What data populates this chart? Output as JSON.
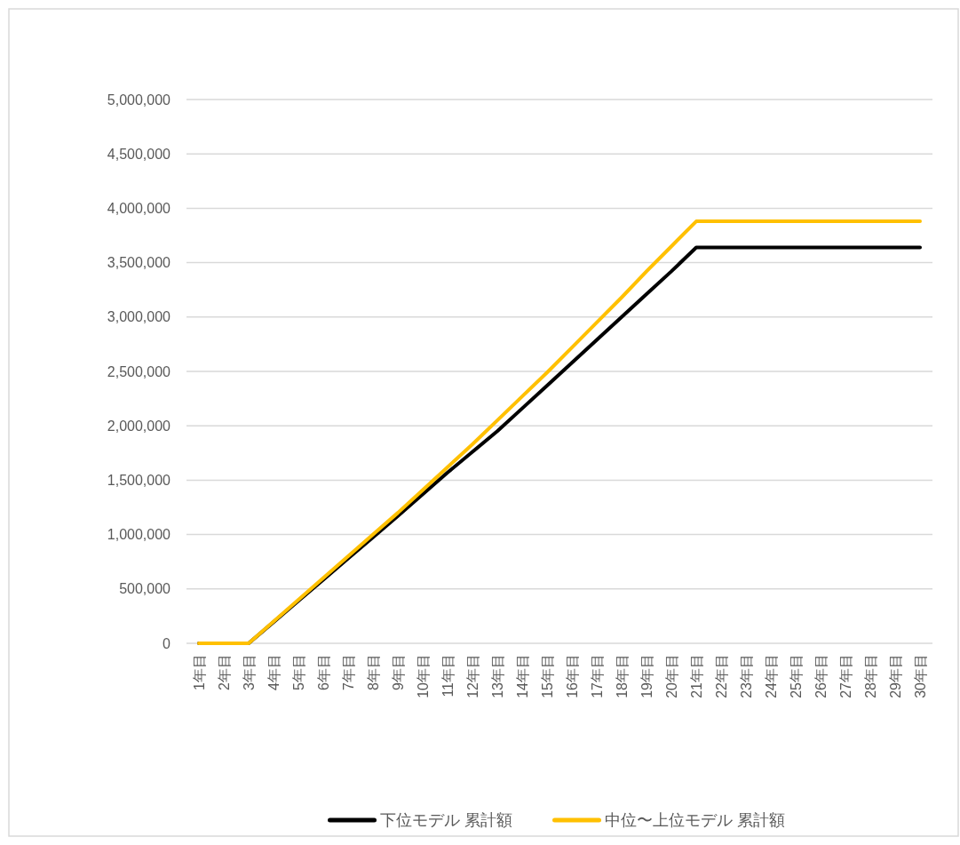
{
  "chart_data": {
    "type": "line",
    "categories": [
      "1年目",
      "2年目",
      "3年目",
      "4年目",
      "5年目",
      "6年目",
      "7年目",
      "8年目",
      "9年目",
      "10年目",
      "11年目",
      "12年目",
      "13年目",
      "14年目",
      "15年目",
      "16年目",
      "17年目",
      "18年目",
      "19年目",
      "20年目",
      "21年目",
      "22年目",
      "23年目",
      "24年目",
      "25年目",
      "26年目",
      "27年目",
      "28年目",
      "29年目",
      "30年目"
    ],
    "series": [
      {
        "name": "下位モデル 累計額",
        "color": "#000000",
        "values": [
          0,
          0,
          0,
          195000,
          390000,
          585000,
          780000,
          975000,
          1170000,
          1370000,
          1570000,
          1760000,
          1950000,
          2160000,
          2370000,
          2580000,
          2790000,
          3000000,
          3210000,
          3420000,
          3640000,
          3640000,
          3640000,
          3640000,
          3640000,
          3640000,
          3640000,
          3640000,
          3640000,
          3640000
        ]
      },
      {
        "name": "中位〜上位モデル 累計額",
        "color": "#ffc000",
        "values": [
          0,
          0,
          0,
          200000,
          400000,
          600000,
          800000,
          1000000,
          1200000,
          1410000,
          1620000,
          1830000,
          2050000,
          2270000,
          2490000,
          2720000,
          2950000,
          3180000,
          3420000,
          3650000,
          3880000,
          3880000,
          3880000,
          3880000,
          3880000,
          3880000,
          3880000,
          3880000,
          3880000,
          3880000
        ]
      }
    ],
    "ylim": [
      0,
      5000000
    ],
    "yticks": [
      {
        "value": 0,
        "label": "0"
      },
      {
        "value": 500000,
        "label": "500,000"
      },
      {
        "value": 1000000,
        "label": "1,000,000"
      },
      {
        "value": 1500000,
        "label": "1,500,000"
      },
      {
        "value": 2000000,
        "label": "2,000,000"
      },
      {
        "value": 2500000,
        "label": "2,500,000"
      },
      {
        "value": 3000000,
        "label": "3,000,000"
      },
      {
        "value": 3500000,
        "label": "3,500,000"
      },
      {
        "value": 4000000,
        "label": "4,000,000"
      },
      {
        "value": 4500000,
        "label": "4,500,000"
      },
      {
        "value": 5000000,
        "label": "5,000,000"
      }
    ],
    "grid": "y",
    "legend": "bottom",
    "marker": "none",
    "line_style": "solid"
  }
}
